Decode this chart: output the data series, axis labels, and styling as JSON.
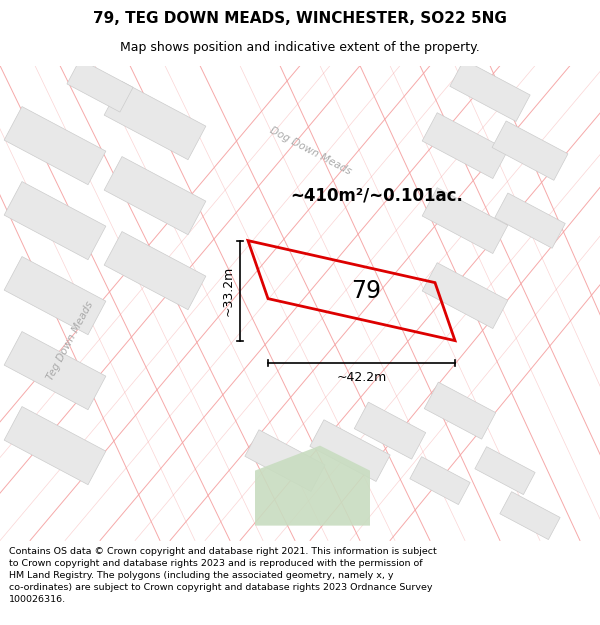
{
  "title": "79, TEG DOWN MEADS, WINCHESTER, SO22 5NG",
  "subtitle": "Map shows position and indicative extent of the property.",
  "area_label": "~410m²/~0.101ac.",
  "number_label": "79",
  "dim_h": "~42.2m",
  "dim_v": "~33.2m",
  "street_label_1": "Teg Down Meads",
  "street_label_2": "Dog Down Meads",
  "footer": "Contains OS data © Crown copyright and database right 2021. This information is subject to Crown copyright and database rights 2023 and is reproduced with the permission of HM Land Registry. The polygons (including the associated geometry, namely x, y co-ordinates) are subject to Crown copyright and database rights 2023 Ordnance Survey 100026316.",
  "bg_color": "#ffffff",
  "map_bg": "#ffffff",
  "road_color": "#f5a0a0",
  "road_alpha": 0.9,
  "block_color": "#e8e8e8",
  "block_edge": "#cccccc",
  "property_color": "#dd0000",
  "green_fill": "#c8dcc0",
  "title_color": "#000000",
  "footer_color": "#000000",
  "label_color": "#000000",
  "street_color": "#aaaaaa",
  "dim_color": "#000000"
}
